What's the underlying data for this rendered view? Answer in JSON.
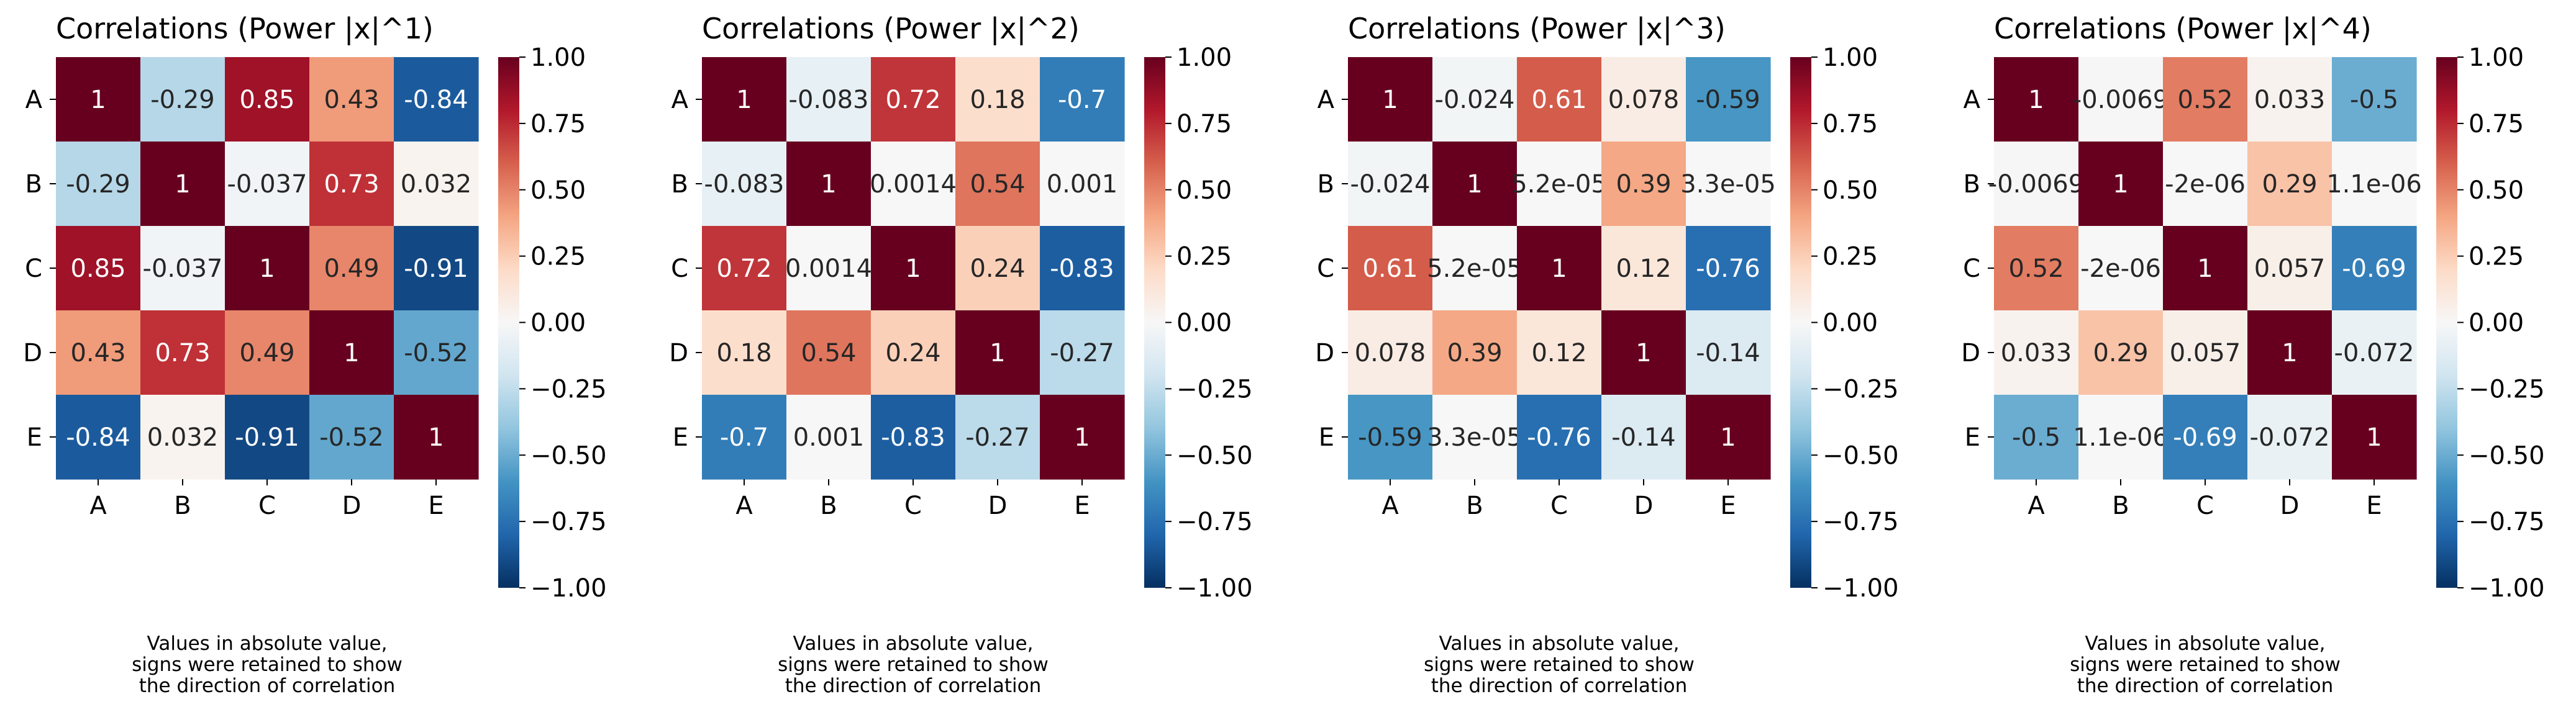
{
  "chart_data": [
    {
      "type": "heatmap",
      "title": "Correlations (Power |x|^1)",
      "xlabel": "",
      "ylabel": "",
      "x_categories": [
        "A",
        "B",
        "C",
        "D",
        "E"
      ],
      "y_categories": [
        "A",
        "B",
        "C",
        "D",
        "E"
      ],
      "values": [
        [
          1,
          -0.29,
          0.85,
          0.43,
          -0.84
        ],
        [
          -0.29,
          1,
          -0.037,
          0.73,
          0.032
        ],
        [
          0.85,
          -0.037,
          1,
          0.49,
          -0.91
        ],
        [
          0.43,
          0.73,
          0.49,
          1,
          -0.52
        ],
        [
          -0.84,
          0.032,
          -0.91,
          -0.52,
          1
        ]
      ],
      "annotations": [
        [
          "1",
          "-0.29",
          "0.85",
          "0.43",
          "-0.84"
        ],
        [
          "-0.29",
          "1",
          "-0.037",
          "0.73",
          "0.032"
        ],
        [
          "0.85",
          "-0.037",
          "1",
          "0.49",
          "-0.91"
        ],
        [
          "0.43",
          "0.73",
          "0.49",
          "1",
          "-0.52"
        ],
        [
          "-0.84",
          "0.032",
          "-0.91",
          "-0.52",
          "1"
        ]
      ],
      "colorbar": {
        "range": [
          -1,
          1
        ],
        "colormap": "RdBu_r",
        "ticks": [
          "1.00",
          "0.75",
          "0.50",
          "0.25",
          "0.00",
          "−0.25",
          "−0.50",
          "−0.75",
          "−1.00"
        ]
      },
      "note_lines": [
        "Values in absolute value,",
        "signs were retained to show",
        "the direction of correlation"
      ]
    },
    {
      "type": "heatmap",
      "title": "Correlations (Power |x|^2)",
      "xlabel": "",
      "ylabel": "",
      "x_categories": [
        "A",
        "B",
        "C",
        "D",
        "E"
      ],
      "y_categories": [
        "A",
        "B",
        "C",
        "D",
        "E"
      ],
      "values": [
        [
          1,
          -0.083,
          0.72,
          0.18,
          -0.7
        ],
        [
          -0.083,
          1,
          0.0014,
          0.54,
          0.001
        ],
        [
          0.72,
          0.0014,
          1,
          0.24,
          -0.83
        ],
        [
          0.18,
          0.54,
          0.24,
          1,
          -0.27
        ],
        [
          -0.7,
          0.001,
          -0.83,
          -0.27,
          1
        ]
      ],
      "annotations": [
        [
          "1",
          "-0.083",
          "0.72",
          "0.18",
          "-0.7"
        ],
        [
          "-0.083",
          "1",
          "0.0014",
          "0.54",
          "0.001"
        ],
        [
          "0.72",
          "0.0014",
          "1",
          "0.24",
          "-0.83"
        ],
        [
          "0.18",
          "0.54",
          "0.24",
          "1",
          "-0.27"
        ],
        [
          "-0.7",
          "0.001",
          "-0.83",
          "-0.27",
          "1"
        ]
      ],
      "colorbar": {
        "range": [
          -1,
          1
        ],
        "colormap": "RdBu_r",
        "ticks": [
          "1.00",
          "0.75",
          "0.50",
          "0.25",
          "0.00",
          "−0.25",
          "−0.50",
          "−0.75",
          "−1.00"
        ]
      },
      "note_lines": [
        "Values in absolute value,",
        "signs were retained to show",
        "the direction of correlation"
      ]
    },
    {
      "type": "heatmap",
      "title": "Correlations (Power |x|^3)",
      "xlabel": "",
      "ylabel": "",
      "x_categories": [
        "A",
        "B",
        "C",
        "D",
        "E"
      ],
      "y_categories": [
        "A",
        "B",
        "C",
        "D",
        "E"
      ],
      "values": [
        [
          1,
          -0.024,
          0.61,
          0.078,
          -0.59
        ],
        [
          -0.024,
          1,
          5.2e-05,
          0.39,
          3.3e-05
        ],
        [
          0.61,
          5.2e-05,
          1,
          0.12,
          -0.76
        ],
        [
          0.078,
          0.39,
          0.12,
          1,
          -0.14
        ],
        [
          -0.59,
          3.3e-05,
          -0.76,
          -0.14,
          1
        ]
      ],
      "annotations": [
        [
          "1",
          "-0.024",
          "0.61",
          "0.078",
          "-0.59"
        ],
        [
          "-0.024",
          "1",
          "5.2e-05",
          "0.39",
          "3.3e-05"
        ],
        [
          "0.61",
          "5.2e-05",
          "1",
          "0.12",
          "-0.76"
        ],
        [
          "0.078",
          "0.39",
          "0.12",
          "1",
          "-0.14"
        ],
        [
          "-0.59",
          "3.3e-05",
          "-0.76",
          "-0.14",
          "1"
        ]
      ],
      "colorbar": {
        "range": [
          -1,
          1
        ],
        "colormap": "RdBu_r",
        "ticks": [
          "1.00",
          "0.75",
          "0.50",
          "0.25",
          "0.00",
          "−0.25",
          "−0.50",
          "−0.75",
          "−1.00"
        ]
      },
      "note_lines": [
        "Values in absolute value,",
        "signs were retained to show",
        "the direction of correlation"
      ]
    },
    {
      "type": "heatmap",
      "title": "Correlations (Power |x|^4)",
      "xlabel": "",
      "ylabel": "",
      "x_categories": [
        "A",
        "B",
        "C",
        "D",
        "E"
      ],
      "y_categories": [
        "A",
        "B",
        "C",
        "D",
        "E"
      ],
      "values": [
        [
          1,
          -0.0069,
          0.52,
          0.033,
          -0.5
        ],
        [
          -0.0069,
          1,
          -2e-06,
          0.29,
          1.1e-06
        ],
        [
          0.52,
          -2e-06,
          1,
          0.057,
          -0.69
        ],
        [
          0.033,
          0.29,
          0.057,
          1,
          -0.072
        ],
        [
          -0.5,
          1.1e-06,
          -0.69,
          -0.072,
          1
        ]
      ],
      "annotations": [
        [
          "1",
          "-0.0069",
          "0.52",
          "0.033",
          "-0.5"
        ],
        [
          "-0.0069",
          "1",
          "-2e-06",
          "0.29",
          "1.1e-06"
        ],
        [
          "0.52",
          "-2e-06",
          "1",
          "0.057",
          "-0.69"
        ],
        [
          "0.033",
          "0.29",
          "0.057",
          "1",
          "-0.072"
        ],
        [
          "-0.5",
          "1.1e-06",
          "-0.69",
          "-0.072",
          "1"
        ]
      ],
      "colorbar": {
        "range": [
          -1,
          1
        ],
        "colormap": "RdBu_r",
        "ticks": [
          "1.00",
          "0.75",
          "0.50",
          "0.25",
          "0.00",
          "−0.25",
          "−0.50",
          "−0.75",
          "−1.00"
        ]
      },
      "note_lines": [
        "Values in absolute value,",
        "signs were retained to show",
        "the direction of correlation"
      ]
    }
  ]
}
